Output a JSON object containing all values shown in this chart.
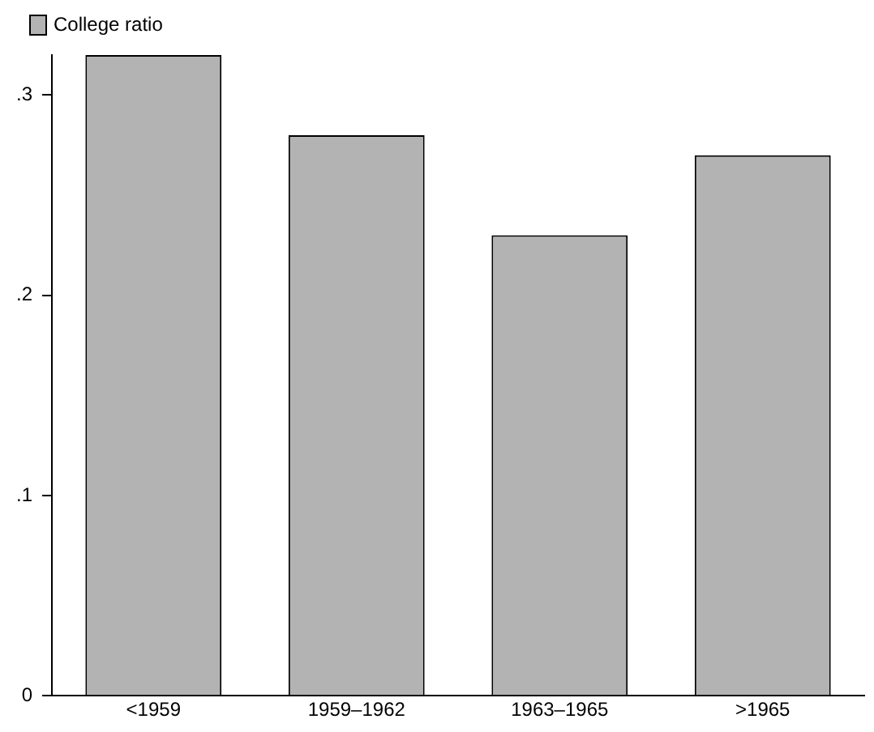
{
  "chart_data": {
    "type": "bar",
    "categories": [
      "<1959",
      "1959–1962",
      "1963–1965",
      ">1965"
    ],
    "series": [
      {
        "name": "College ratio",
        "color": "#b3b3b3",
        "values": [
          0.32,
          0.28,
          0.23,
          0.27
        ]
      }
    ],
    "ylim": [
      0,
      0.32
    ],
    "yticks": [
      0,
      {
        "value": 0.1,
        "label": ".1"
      },
      {
        "value": 0.2,
        "label": ".2"
      },
      {
        "value": 0.3,
        "label": ".3"
      }
    ],
    "grid": false,
    "legend": "top left"
  }
}
